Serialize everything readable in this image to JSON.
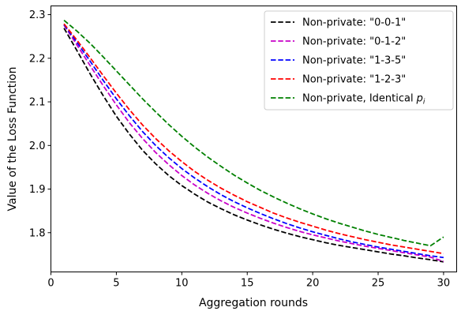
{
  "chart_data": {
    "type": "line",
    "title": "",
    "xlabel": "Aggregation rounds",
    "ylabel": "Value of the Loss Function",
    "xlim": [
      0,
      31
    ],
    "ylim": [
      1.71,
      2.32
    ],
    "xticks": [
      0,
      5,
      10,
      15,
      20,
      25,
      30
    ],
    "yticks": [
      1.8,
      1.9,
      2.0,
      2.1,
      2.2,
      2.3
    ],
    "ytick_labels": [
      "1.8",
      "1.9",
      "2.0",
      "2.1",
      "2.2",
      "2.3"
    ],
    "grid": false,
    "legend_position": "top-right",
    "x": [
      1,
      2,
      3,
      4,
      5,
      6,
      7,
      8,
      9,
      10,
      11,
      12,
      13,
      14,
      15,
      16,
      17,
      18,
      19,
      20,
      21,
      22,
      23,
      24,
      25,
      26,
      27,
      28,
      29,
      30
    ],
    "series": [
      {
        "name": "Non-private: \"0-0-1\"",
        "legend_text": "Non-private: \"0-0-1\"",
        "color": "#000000",
        "values": [
          2.269,
          2.217,
          2.164,
          2.114,
          2.067,
          2.026,
          1.989,
          1.958,
          1.931,
          1.908,
          1.888,
          1.87,
          1.855,
          1.841,
          1.829,
          1.818,
          1.808,
          1.799,
          1.791,
          1.784,
          1.777,
          1.771,
          1.766,
          1.761,
          1.756,
          1.751,
          1.747,
          1.742,
          1.738,
          1.733
        ]
      },
      {
        "name": "Non-private: \"0-1-2\"",
        "legend_text": "Non-private: \"0-1-2\"",
        "color": "#c800c8",
        "values": [
          2.276,
          2.23,
          2.183,
          2.137,
          2.093,
          2.052,
          2.016,
          1.984,
          1.956,
          1.931,
          1.909,
          1.89,
          1.873,
          1.858,
          1.845,
          1.833,
          1.822,
          1.812,
          1.803,
          1.795,
          1.788,
          1.781,
          1.775,
          1.769,
          1.764,
          1.759,
          1.754,
          1.749,
          1.744,
          1.734
        ]
      },
      {
        "name": "Non-private: \"1-3-5\"",
        "legend_text": "Non-private: \"1-3-5\"",
        "color": "#0000ff",
        "values": [
          2.277,
          2.236,
          2.193,
          2.149,
          2.107,
          2.068,
          2.032,
          2.0,
          1.972,
          1.947,
          1.925,
          1.905,
          1.887,
          1.871,
          1.857,
          1.844,
          1.832,
          1.821,
          1.811,
          1.802,
          1.794,
          1.786,
          1.779,
          1.773,
          1.767,
          1.762,
          1.757,
          1.752,
          1.747,
          1.743
        ]
      },
      {
        "name": "Non-private: \"1-2-3\"",
        "legend_text": "Non-private: \"1-2-3\"",
        "color": "#ff0000",
        "values": [
          2.279,
          2.241,
          2.201,
          2.16,
          2.12,
          2.082,
          2.047,
          2.016,
          1.988,
          1.963,
          1.94,
          1.92,
          1.902,
          1.886,
          1.871,
          1.858,
          1.845,
          1.834,
          1.824,
          1.815,
          1.806,
          1.798,
          1.791,
          1.784,
          1.778,
          1.772,
          1.767,
          1.762,
          1.757,
          1.752
        ]
      },
      {
        "name": "Non-private, Identical p_i",
        "legend_text": "Non-private, Identical",
        "legend_math": "p",
        "legend_math_sub": "i",
        "color": "#008000",
        "values": [
          2.287,
          2.262,
          2.234,
          2.203,
          2.171,
          2.139,
          2.107,
          2.077,
          2.048,
          2.021,
          1.996,
          1.973,
          1.952,
          1.932,
          1.914,
          1.897,
          1.882,
          1.868,
          1.855,
          1.843,
          1.832,
          1.822,
          1.813,
          1.804,
          1.796,
          1.789,
          1.782,
          1.776,
          1.77,
          1.79
        ]
      }
    ]
  }
}
